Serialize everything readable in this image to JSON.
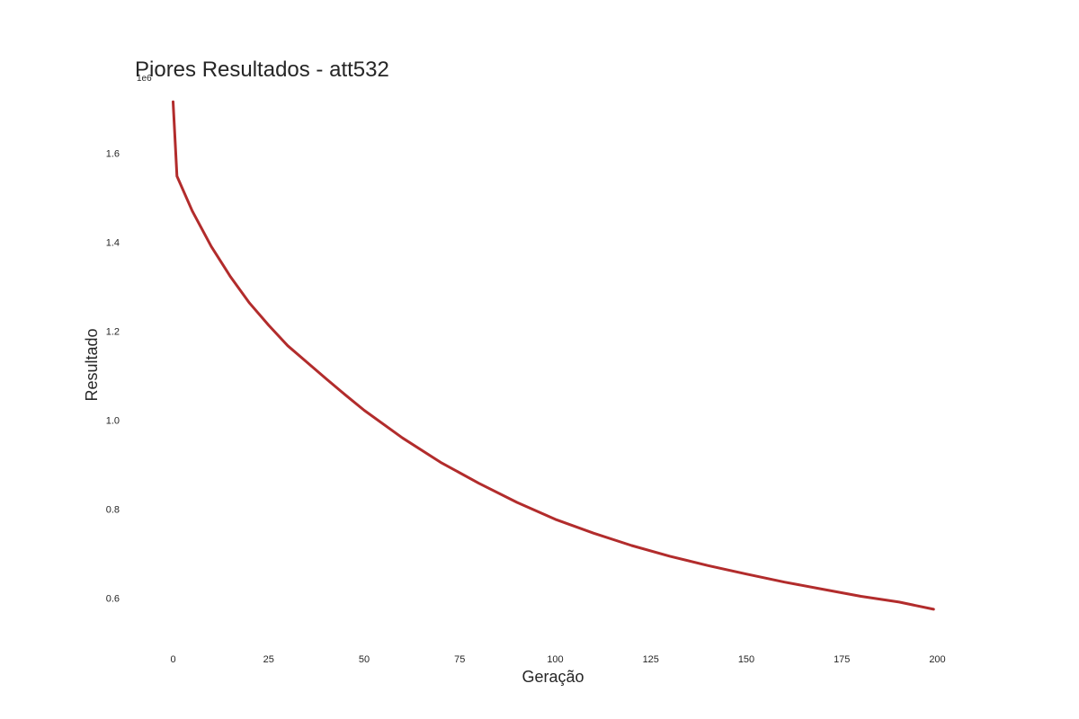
{
  "chart_data": {
    "type": "line",
    "title": "Piores Resultados - att532",
    "xlabel": "Geração",
    "ylabel": "Resultado",
    "y_offset_label": "1e6",
    "xlim": [
      -10,
      210
    ],
    "ylim": [
      0.5,
      1.75
    ],
    "x_ticks": [
      0,
      25,
      50,
      75,
      100,
      125,
      150,
      175,
      200
    ],
    "y_ticks": [
      0.6,
      0.8,
      1.0,
      1.2,
      1.4,
      1.6
    ],
    "y_tick_labels": [
      "0.6",
      "0.8",
      "1.0",
      "1.2",
      "1.4",
      "1.6"
    ],
    "grid": false,
    "line_color": "#b22c2c",
    "series": [
      {
        "x": [
          0,
          1,
          5,
          10,
          15,
          20,
          25,
          30,
          35,
          40,
          45,
          50,
          60,
          70,
          80,
          90,
          100,
          110,
          120,
          130,
          140,
          150,
          160,
          170,
          180,
          190,
          199
        ],
        "values": [
          1.715,
          1.548,
          1.47,
          1.39,
          1.322,
          1.263,
          1.213,
          1.167,
          1.13,
          1.093,
          1.057,
          1.022,
          0.96,
          0.905,
          0.858,
          0.815,
          0.777,
          0.746,
          0.718,
          0.694,
          0.673,
          0.654,
          0.636,
          0.62,
          0.604,
          0.591,
          0.575
        ]
      }
    ]
  }
}
